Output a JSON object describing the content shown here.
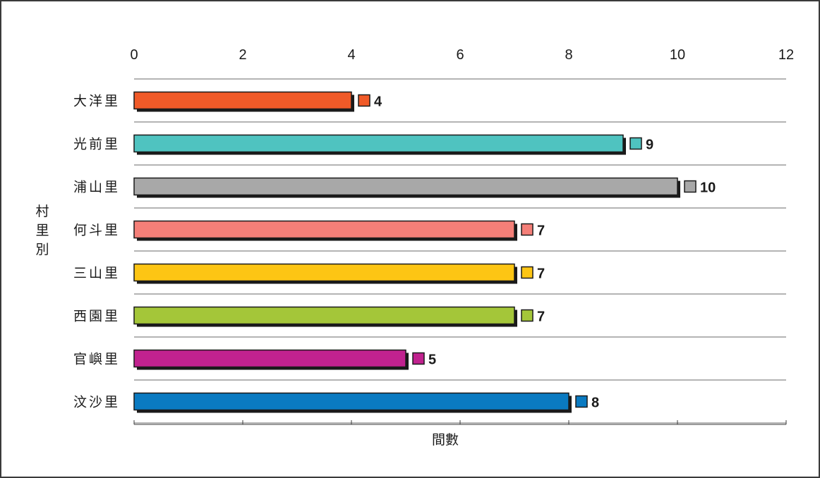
{
  "chart_data": {
    "type": "bar",
    "orientation": "horizontal",
    "categories": [
      "大洋里",
      "光前里",
      "浦山里",
      "何斗里",
      "三山里",
      "西園里",
      "官嶼里",
      "汶沙里"
    ],
    "values": [
      4,
      9,
      10,
      7,
      7,
      7,
      5,
      8
    ],
    "colors": [
      "#f05a28",
      "#4fc3c0",
      "#a8a8a8",
      "#f47f78",
      "#fdc514",
      "#a4c639",
      "#c1228f",
      "#0a7ac1"
    ],
    "xlabel": "間數",
    "ylabel": "村里別",
    "xlim": [
      0,
      12
    ],
    "x_ticks": [
      "0",
      "2",
      "4",
      "6",
      "8",
      "10",
      "12"
    ],
    "x_tick_values": [
      0,
      2,
      4,
      6,
      8,
      10,
      12
    ],
    "x_axis_position": "top",
    "grid": "horizontal-separators",
    "legend": "none",
    "data_labels": true
  }
}
